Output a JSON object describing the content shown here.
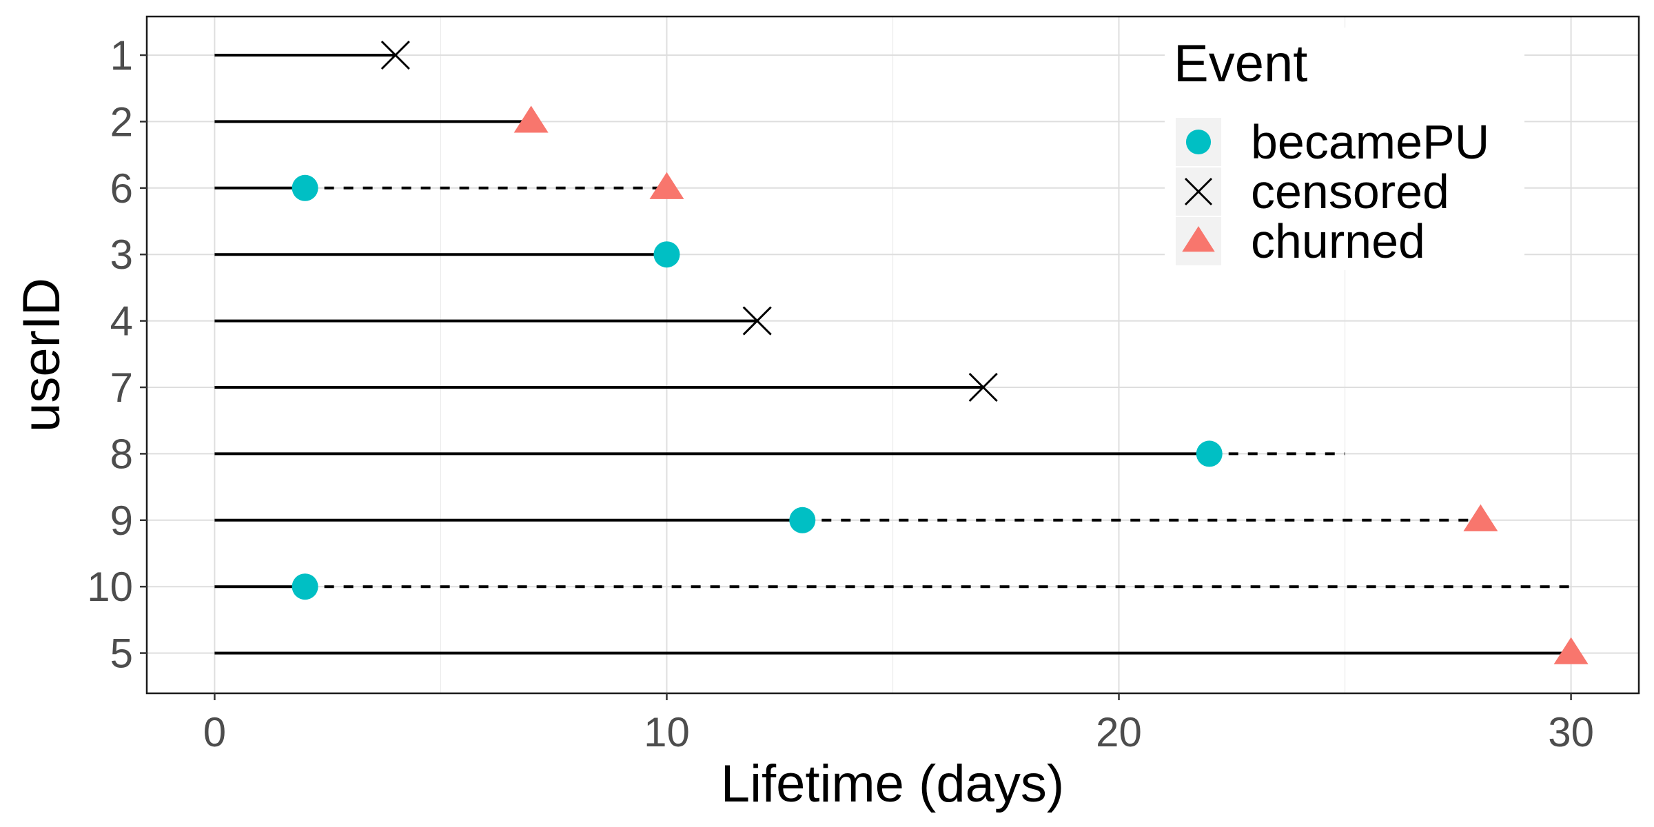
{
  "chart_data": {
    "type": "scatter",
    "xlabel": "Lifetime (days)",
    "ylabel": "userID",
    "xlim": [
      -1.5,
      31.5
    ],
    "x_ticks": [
      0,
      10,
      20,
      30
    ],
    "x_tick_labels": [
      "0",
      "10",
      "20",
      "30"
    ],
    "grid": true,
    "legend": {
      "title": "Event",
      "position": "top-right",
      "entries": [
        {
          "key": "becamePU",
          "label": "becamePU",
          "shape": "circle",
          "color": "#00BFC4"
        },
        {
          "key": "censored",
          "label": "censored",
          "shape": "cross",
          "color": "#000000"
        },
        {
          "key": "churned",
          "label": "churned",
          "shape": "triangle",
          "color": "#F8766D"
        }
      ]
    },
    "users": [
      {
        "id": "1",
        "solid_end": 4,
        "dashed_end": null,
        "events": [
          {
            "type": "censored",
            "x": 4
          }
        ]
      },
      {
        "id": "2",
        "solid_end": 7,
        "dashed_end": null,
        "events": [
          {
            "type": "churned",
            "x": 7
          }
        ]
      },
      {
        "id": "6",
        "solid_end": 2,
        "dashed_end": 10,
        "events": [
          {
            "type": "becamePU",
            "x": 2
          },
          {
            "type": "churned",
            "x": 10
          }
        ]
      },
      {
        "id": "3",
        "solid_end": 10,
        "dashed_end": null,
        "events": [
          {
            "type": "becamePU",
            "x": 10
          }
        ]
      },
      {
        "id": "4",
        "solid_end": 12,
        "dashed_end": null,
        "events": [
          {
            "type": "censored",
            "x": 12
          }
        ]
      },
      {
        "id": "7",
        "solid_end": 17,
        "dashed_end": null,
        "events": [
          {
            "type": "censored",
            "x": 17
          }
        ]
      },
      {
        "id": "8",
        "solid_end": 22,
        "dashed_end": 25,
        "events": [
          {
            "type": "becamePU",
            "x": 22
          }
        ]
      },
      {
        "id": "9",
        "solid_end": 13,
        "dashed_end": 28,
        "events": [
          {
            "type": "becamePU",
            "x": 13
          },
          {
            "type": "churned",
            "x": 28
          }
        ]
      },
      {
        "id": "10",
        "solid_end": 2,
        "dashed_end": 30,
        "events": [
          {
            "type": "becamePU",
            "x": 2
          }
        ]
      },
      {
        "id": "5",
        "solid_end": 30,
        "dashed_end": null,
        "events": [
          {
            "type": "churned",
            "x": 30
          }
        ]
      }
    ]
  }
}
